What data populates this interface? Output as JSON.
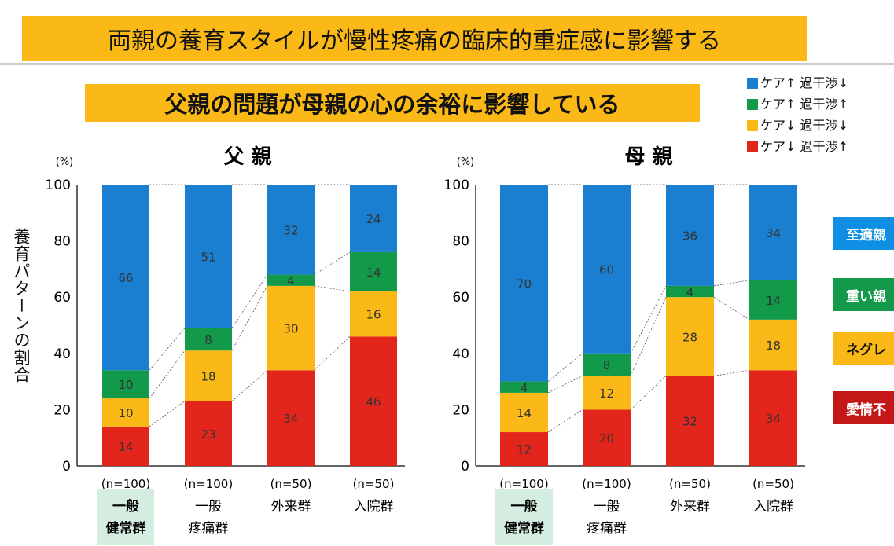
{
  "title": "両親の養育スタイルが慢性疼痛の臨床的重症感に影響する",
  "subtitle": "父親の問題が母親の心の余裕に影響している",
  "legend": [
    {
      "label": "ケア↑ 過干渉↓",
      "color": "#1a7fd0"
    },
    {
      "label": "ケア↑ 過干渉↑",
      "color": "#12994a"
    },
    {
      "label": "ケア↓ 過干渉↓",
      "color": "#fbb917"
    },
    {
      "label": "ケア↓ 過干渉↑",
      "color": "#e3261b"
    }
  ],
  "side_tags": [
    {
      "label": "至適親",
      "color": "#0f8fe3",
      "text": "#fff"
    },
    {
      "label": "重い親",
      "color": "#12994a",
      "text": "#fff"
    },
    {
      "label": "ネグレ",
      "color": "#fbb917",
      "text": "#111"
    },
    {
      "label": "愛情不",
      "color": "#c41717",
      "text": "#fff"
    }
  ],
  "ylabel": "養育パターンの割合",
  "chart_data": [
    {
      "type": "bar",
      "stacked": true,
      "title": "父 親",
      "ylabel_unit": "(%)",
      "ylim": [
        0,
        100
      ],
      "yticks": [
        0,
        20,
        40,
        60,
        80,
        100
      ],
      "categories": [
        "一般\n健常群",
        "一般\n疼痛群",
        "外来群",
        "入院群"
      ],
      "n_labels": [
        "(n=100)",
        "(n=100)",
        "(n=50)",
        "(n=50)"
      ],
      "series": [
        {
          "name": "ケア↓ 過干渉↑",
          "values": [
            14,
            23,
            34,
            46
          ]
        },
        {
          "name": "ケア↓ 過干渉↓",
          "values": [
            10,
            18,
            30,
            16
          ]
        },
        {
          "name": "ケア↑ 過干渉↑",
          "values": [
            10,
            8,
            4,
            14
          ]
        },
        {
          "name": "ケア↑ 過干渉↓",
          "values": [
            66,
            51,
            32,
            24
          ]
        }
      ]
    },
    {
      "type": "bar",
      "stacked": true,
      "title": "母 親",
      "ylabel_unit": "(%)",
      "ylim": [
        0,
        100
      ],
      "yticks": [
        0,
        20,
        40,
        60,
        80,
        100
      ],
      "categories": [
        "一般\n健常群",
        "一般\n疼痛群",
        "外来群",
        "入院群"
      ],
      "n_labels": [
        "(n=100)",
        "(n=100)",
        "(n=50)",
        "(n=50)"
      ],
      "series": [
        {
          "name": "ケア↓ 過干渉↑",
          "values": [
            12,
            20,
            32,
            34
          ]
        },
        {
          "name": "ケア↓ 過干渉↓",
          "values": [
            14,
            12,
            28,
            18
          ]
        },
        {
          "name": "ケア↑ 過干渉↑",
          "values": [
            4,
            8,
            4,
            14
          ]
        },
        {
          "name": "ケア↑ 過干渉↓",
          "values": [
            70,
            60,
            36,
            34
          ]
        }
      ]
    }
  ]
}
